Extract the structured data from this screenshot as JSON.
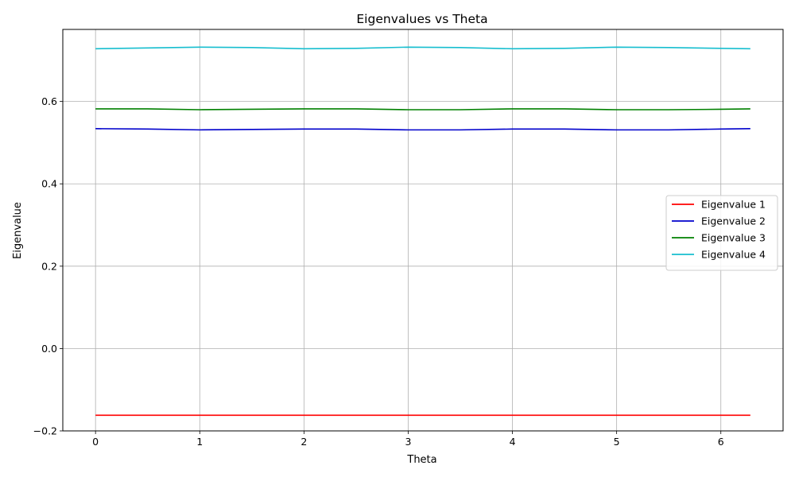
{
  "chart_data": {
    "type": "line",
    "title": "Eigenvalues vs Theta",
    "xlabel": "Theta",
    "ylabel": "Eigenvalue",
    "xlim": [
      -0.314,
      6.597
    ],
    "ylim": [
      -0.2,
      0.775
    ],
    "xticks": [
      0,
      1,
      2,
      3,
      4,
      5,
      6
    ],
    "xtick_labels": [
      "0",
      "1",
      "2",
      "3",
      "4",
      "5",
      "6"
    ],
    "yticks": [
      -0.2,
      0.0,
      0.2,
      0.4,
      0.6
    ],
    "ytick_labels": [
      "−0.2",
      "0.0",
      "0.2",
      "0.4",
      "0.6"
    ],
    "grid": true,
    "legend_position": "center-right",
    "x": [
      0.0,
      0.5,
      1.0,
      1.5,
      2.0,
      2.5,
      3.0,
      3.5,
      4.0,
      4.5,
      5.0,
      5.5,
      6.0,
      6.283
    ],
    "series": [
      {
        "name": "Eigenvalue 1",
        "color": "#ff0000",
        "values": [
          -0.162,
          -0.162,
          -0.162,
          -0.162,
          -0.162,
          -0.162,
          -0.162,
          -0.162,
          -0.162,
          -0.162,
          -0.162,
          -0.162,
          -0.162,
          -0.162
        ]
      },
      {
        "name": "Eigenvalue 2",
        "color": "#0000cc",
        "values": [
          0.534,
          0.533,
          0.531,
          0.532,
          0.533,
          0.533,
          0.531,
          0.531,
          0.533,
          0.533,
          0.531,
          0.531,
          0.533,
          0.534
        ]
      },
      {
        "name": "Eigenvalue 3",
        "color": "#008000",
        "values": [
          0.582,
          0.582,
          0.58,
          0.581,
          0.582,
          0.582,
          0.58,
          0.58,
          0.582,
          0.582,
          0.58,
          0.58,
          0.581,
          0.582
        ]
      },
      {
        "name": "Eigenvalue 4",
        "color": "#17becf",
        "values": [
          0.728,
          0.73,
          0.732,
          0.731,
          0.728,
          0.729,
          0.732,
          0.731,
          0.728,
          0.729,
          0.732,
          0.731,
          0.729,
          0.728
        ]
      }
    ]
  }
}
